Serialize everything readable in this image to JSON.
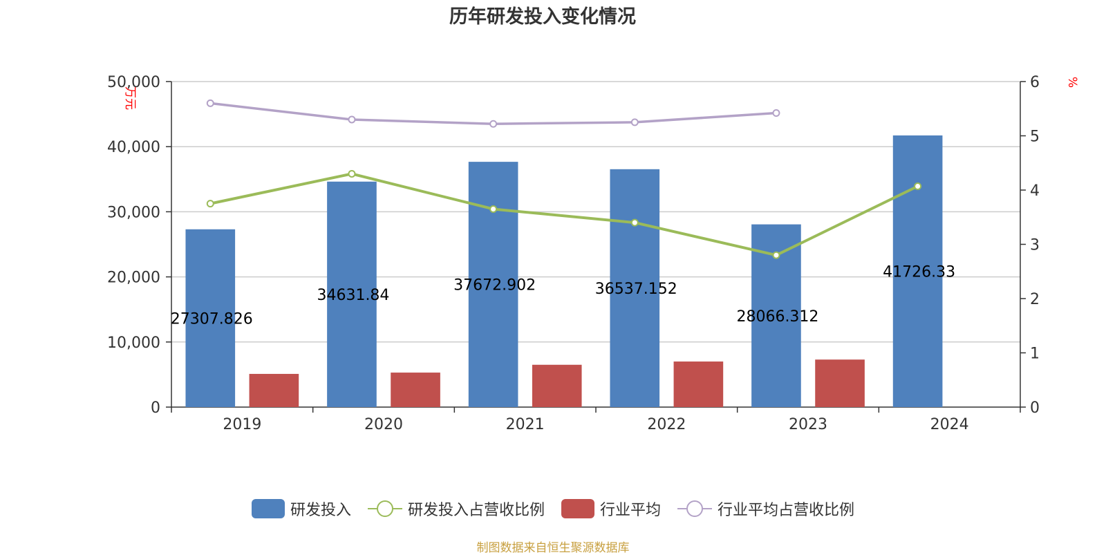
{
  "chart_data": {
    "type": "bar",
    "title": "历年研发投入变化情况",
    "categories": [
      "2019",
      "2020",
      "2021",
      "2022",
      "2023",
      "2024"
    ],
    "y_left": {
      "label": "万元",
      "ticks": [
        "0",
        "10,000",
        "20,000",
        "30,000",
        "40,000",
        "50,000"
      ],
      "ylim": [
        0,
        50000
      ]
    },
    "y_right": {
      "label": "%",
      "ticks": [
        "0",
        "1",
        "2",
        "3",
        "4",
        "5",
        "6"
      ],
      "ylim": [
        0,
        6
      ]
    },
    "grid": true,
    "legend_position": "bottom",
    "series": [
      {
        "name": "研发投入",
        "kind": "bar",
        "axis": "left",
        "color": "#4f81bd",
        "values": [
          27307.826,
          34631.84,
          37672.902,
          36537.152,
          28066.312,
          41726.33
        ],
        "labels": [
          "27307.826",
          "34631.84",
          "37672.902",
          "36537.152",
          "28066.312",
          "41726.33"
        ]
      },
      {
        "name": "研发投入占营收比例",
        "kind": "line",
        "axis": "right",
        "color": "#9bbb59",
        "values": [
          3.75,
          4.3,
          3.65,
          3.4,
          2.8,
          4.07
        ]
      },
      {
        "name": "行业平均",
        "kind": "bar",
        "axis": "left",
        "color": "#c0504d",
        "values": [
          5100,
          5300,
          6500,
          7000,
          7300,
          null
        ]
      },
      {
        "name": "行业平均占营收比例",
        "kind": "line",
        "axis": "right",
        "color": "#b3a2c7",
        "values": [
          5.6,
          5.3,
          5.22,
          5.25,
          5.42,
          null
        ]
      }
    ]
  },
  "source_text": "制图数据来自恒生聚源数据库",
  "colors": {
    "axis_label": "#ff0000",
    "source": "#c8a040"
  }
}
